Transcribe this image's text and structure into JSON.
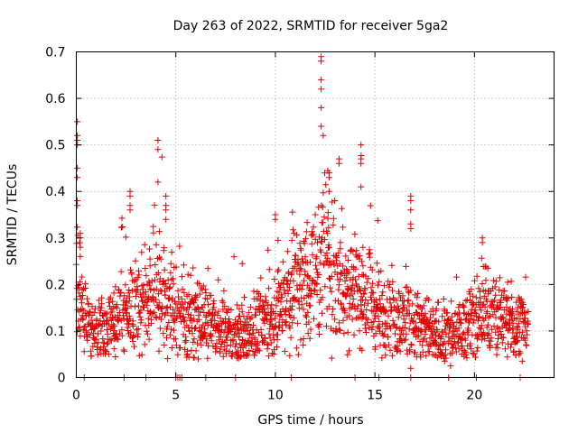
{
  "chart_data": {
    "type": "scatter",
    "title": "Day 263 of 2022, SRMTID for receiver 5ga2",
    "xlabel": "GPS time / hours",
    "ylabel": "SRMTID / TECUs",
    "xlim": [
      0,
      24
    ],
    "ylim": [
      0,
      0.7
    ],
    "xticks": [
      0,
      5,
      10,
      15,
      20
    ],
    "xtick_labels": [
      "0",
      "5",
      "10",
      "15",
      "20"
    ],
    "yticks": [
      0,
      0.1,
      0.2,
      0.3,
      0.4,
      0.5,
      0.6,
      0.7
    ],
    "ytick_labels": [
      "0",
      "0.1",
      "0.2",
      "0.3",
      "0.4",
      "0.5",
      "0.6",
      "0.7"
    ],
    "grid": true,
    "marker": "+",
    "series_color": "#e00000",
    "profile": [
      {
        "t": 0.0,
        "base": 0.2,
        "spread": 0.1,
        "max": 0.55
      },
      {
        "t": 0.5,
        "base": 0.11,
        "spread": 0.04,
        "max": 0.3
      },
      {
        "t": 1.5,
        "base": 0.11,
        "spread": 0.04,
        "max": 0.2
      },
      {
        "t": 2.5,
        "base": 0.15,
        "spread": 0.06,
        "max": 0.4
      },
      {
        "t": 3.5,
        "base": 0.16,
        "spread": 0.06,
        "max": 0.33
      },
      {
        "t": 4.2,
        "base": 0.2,
        "spread": 0.08,
        "max": 0.51
      },
      {
        "t": 5.0,
        "base": 0.13,
        "spread": 0.06,
        "max": 0.3
      },
      {
        "t": 6.0,
        "base": 0.13,
        "spread": 0.06,
        "max": 0.33
      },
      {
        "t": 7.0,
        "base": 0.1,
        "spread": 0.04,
        "max": 0.22
      },
      {
        "t": 8.0,
        "base": 0.09,
        "spread": 0.04,
        "max": 0.3
      },
      {
        "t": 9.0,
        "base": 0.11,
        "spread": 0.05,
        "max": 0.25
      },
      {
        "t": 10.0,
        "base": 0.14,
        "spread": 0.06,
        "max": 0.35
      },
      {
        "t": 11.0,
        "base": 0.2,
        "spread": 0.08,
        "max": 0.4
      },
      {
        "t": 12.0,
        "base": 0.22,
        "spread": 0.09,
        "max": 0.45
      },
      {
        "t": 12.5,
        "base": 0.25,
        "spread": 0.1,
        "max": 0.69
      },
      {
        "t": 13.5,
        "base": 0.2,
        "spread": 0.08,
        "max": 0.47
      },
      {
        "t": 14.3,
        "base": 0.18,
        "spread": 0.07,
        "max": 0.5
      },
      {
        "t": 15.5,
        "base": 0.13,
        "spread": 0.05,
        "max": 0.3
      },
      {
        "t": 16.8,
        "base": 0.12,
        "spread": 0.06,
        "max": 0.39
      },
      {
        "t": 18.0,
        "base": 0.09,
        "spread": 0.04,
        "max": 0.2
      },
      {
        "t": 19.0,
        "base": 0.09,
        "spread": 0.04,
        "max": 0.25
      },
      {
        "t": 20.3,
        "base": 0.13,
        "spread": 0.06,
        "max": 0.3
      },
      {
        "t": 21.5,
        "base": 0.12,
        "spread": 0.05,
        "max": 0.25
      },
      {
        "t": 22.7,
        "base": 0.11,
        "spread": 0.04,
        "max": 0.22
      }
    ],
    "spikes": [
      {
        "t": 0.05,
        "values": [
          0.55,
          0.52,
          0.51,
          0.5,
          0.45,
          0.43,
          0.38,
          0.37
        ]
      },
      {
        "t": 0.2,
        "values": [
          0.31,
          0.3,
          0.28,
          0.26
        ]
      },
      {
        "t": 2.7,
        "values": [
          0.4,
          0.39,
          0.37,
          0.36
        ]
      },
      {
        "t": 4.1,
        "values": [
          0.51,
          0.49,
          0.42
        ]
      },
      {
        "t": 4.5,
        "values": [
          0.39,
          0.37,
          0.36,
          0.34
        ]
      },
      {
        "t": 10.0,
        "values": [
          0.35,
          0.34
        ]
      },
      {
        "t": 12.3,
        "values": [
          0.69,
          0.68,
          0.64,
          0.62,
          0.58,
          0.54
        ]
      },
      {
        "t": 12.7,
        "values": [
          0.44,
          0.43,
          0.4
        ]
      },
      {
        "t": 13.2,
        "values": [
          0.47,
          0.46
        ]
      },
      {
        "t": 14.3,
        "values": [
          0.5,
          0.47,
          0.46,
          0.41
        ]
      },
      {
        "t": 16.8,
        "values": [
          0.39,
          0.38,
          0.36,
          0.33,
          0.32
        ]
      },
      {
        "t": 20.4,
        "values": [
          0.3,
          0.29
        ]
      }
    ],
    "zero_points": [
      0.4,
      2.4,
      3.5,
      5.0,
      5.1,
      5.2,
      5.3,
      6.5,
      8.0,
      10.8,
      14.0,
      15.2,
      16.8,
      18.7,
      20.1,
      22.3
    ],
    "low_points": [
      {
        "t": 16.8,
        "v": 0.02
      },
      {
        "t": 18.8,
        "v": 0.025
      },
      {
        "t": 18.5,
        "v": 0.035
      },
      {
        "t": 22.4,
        "v": 0.035
      }
    ]
  }
}
